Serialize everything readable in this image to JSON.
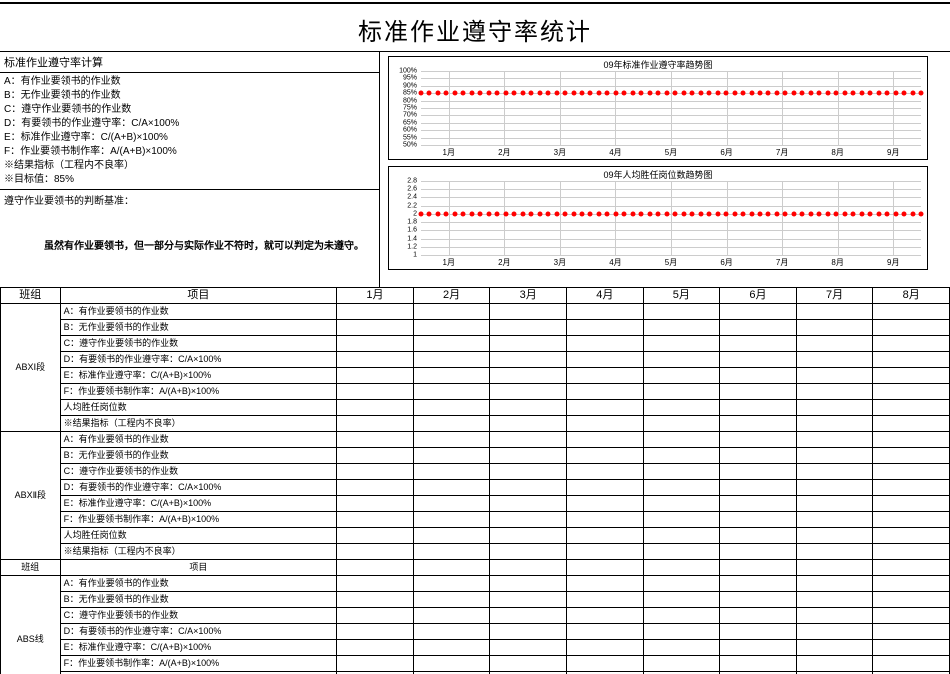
{
  "title": "标准作业遵守率统计",
  "calc": {
    "header": "标准作业遵守率计算",
    "lines": [
      "A：有作业要领书的作业数",
      "B：无作业要领书的作业数",
      "C：遵守作业要领书的作业数",
      "D：有要领书的作业遵守率：C/A×100%",
      "E：标准作业遵守率：C/(A+B)×100%",
      "F：作业要领书制作率：A/(A+B)×100%",
      "※结果指标（工程内不良率）",
      "※目标值：85%"
    ],
    "judge_header": "遵守作业要领书的判断基准：",
    "judge_body": "　　虽然有作业要领书，但一部分与实际作业不符时，就可以判定为未遵守。"
  },
  "chart1": {
    "title": "09年标准作业遵守率趋势图",
    "y_ticks": [
      50,
      55,
      60,
      65,
      70,
      75,
      80,
      85,
      90,
      95,
      100
    ],
    "y_labels": [
      "50%",
      "55%",
      "60%",
      "65%",
      "70%",
      "75%",
      "80%",
      "85%",
      "90%",
      "95%",
      "100%"
    ],
    "y_min": 50,
    "y_max": 100,
    "x_labels": [
      "1月",
      "2月",
      "3月",
      "4月",
      "5月",
      "6月",
      "7月",
      "8月",
      "9月"
    ],
    "target_value": 85,
    "target_color": "#ff0000"
  },
  "chart2": {
    "title": "09年人均胜任岗位数趋势图",
    "y_ticks": [
      1,
      1.2,
      1.4,
      1.6,
      1.8,
      2,
      2.2,
      2.4,
      2.6,
      2.8
    ],
    "y_labels": [
      "1",
      "1.2",
      "1.4",
      "1.6",
      "1.8",
      "2",
      "2.2",
      "2.4",
      "2.6",
      "2.8"
    ],
    "y_min": 1,
    "y_max": 2.8,
    "x_labels": [
      "1月",
      "2月",
      "3月",
      "4月",
      "5月",
      "6月",
      "7月",
      "8月",
      "9月"
    ],
    "target_value": 2,
    "target_color": "#ff0000"
  },
  "table": {
    "headers": {
      "group": "班组",
      "item": "项目",
      "months": [
        "1月",
        "2月",
        "3月",
        "4月",
        "5月",
        "6月",
        "7月",
        "8月"
      ]
    },
    "item_labels": [
      "A：有作业要领书的作业数",
      "B：无作业要领书的作业数",
      "C：遵守作业要领书的作业数",
      "D：有要领书的作业遵守率：C/A×100%",
      "E：标准作业遵守率：C/(A+B)×100%",
      "F：作业要领书制作率：A/(A+B)×100%",
      "人均胜任岗位数",
      "※结果指标（工程内不良率）"
    ],
    "groups": [
      "ABXⅠ段",
      "ABXⅡ段",
      "ABS线"
    ],
    "sub_header": {
      "group": "班组",
      "item": "项目"
    }
  }
}
